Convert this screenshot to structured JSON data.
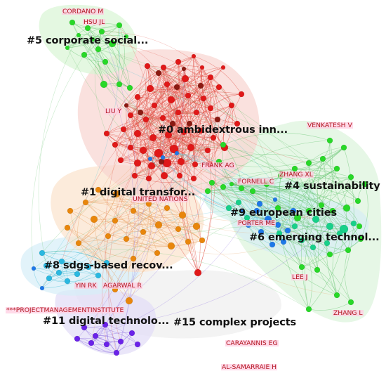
{
  "colors": {
    "edge_red": "#e0473d",
    "edge_green": "#63c26e",
    "edge_orange": "#e8a060",
    "edge_cyan": "#4fc1d8",
    "edge_purple": "#8a6ae0",
    "node_red": "#e01818",
    "node_darkred": "#8c1a12",
    "node_green": "#28d828",
    "node_orange": "#e8860c",
    "node_teal": "#18d08a",
    "node_blue": "#1e78e8",
    "node_purple": "#6a22e8",
    "author_text": "#b21520",
    "author_bg": "#ffcde1",
    "label_text": "#111111"
  },
  "clusters": [
    {
      "id": "c5",
      "label": "#5 corporate social...",
      "color": "#28d828",
      "hull": "#d8f5d4"
    },
    {
      "id": "c0",
      "label": "#0 ambidextrous inn...",
      "color": "#e01818",
      "hull": "#f8d4d0"
    },
    {
      "id": "c4",
      "label": "#4 sustainability",
      "color": "#18d08a",
      "hull": "#dcf3dc"
    },
    {
      "id": "c1",
      "label": "#1 digital transfor...",
      "color": "#e8860c",
      "hull": "#fbe3cc"
    },
    {
      "id": "c9",
      "label": "#9 european cities",
      "color": "#18c8b0",
      "hull": "#d3f1ec"
    },
    {
      "id": "c6",
      "label": "#6 emerging technol...",
      "color": "#1e78e8",
      "hull": "#d6ecf3"
    },
    {
      "id": "c8",
      "label": "#8 sdgs-based recov...",
      "color": "#2ab8e0",
      "hull": "#d6eef8"
    },
    {
      "id": "c11",
      "label": "#11 digital technolo...",
      "color": "#6a22e8",
      "hull": "#e1dcf6"
    },
    {
      "id": "c15",
      "label": "#15 complex projects",
      "color": "#cccccc",
      "hull": "#eeeeee"
    }
  ],
  "authors": [
    "CORDANO M",
    "HSU JL",
    "LIU Y",
    "VENKATESH V",
    "FRANK AG",
    "ZHANG XL",
    "FORNELL C",
    "UNITED NATIONS",
    "PORTER ME",
    "YIN RK",
    "AGARWAL R",
    "***PROJECTMANAGEMENTINSTITUTE",
    "LEE J",
    "ZHANG L",
    "CARAYANNIS EG",
    "AL-SAMARRAIE H"
  ]
}
